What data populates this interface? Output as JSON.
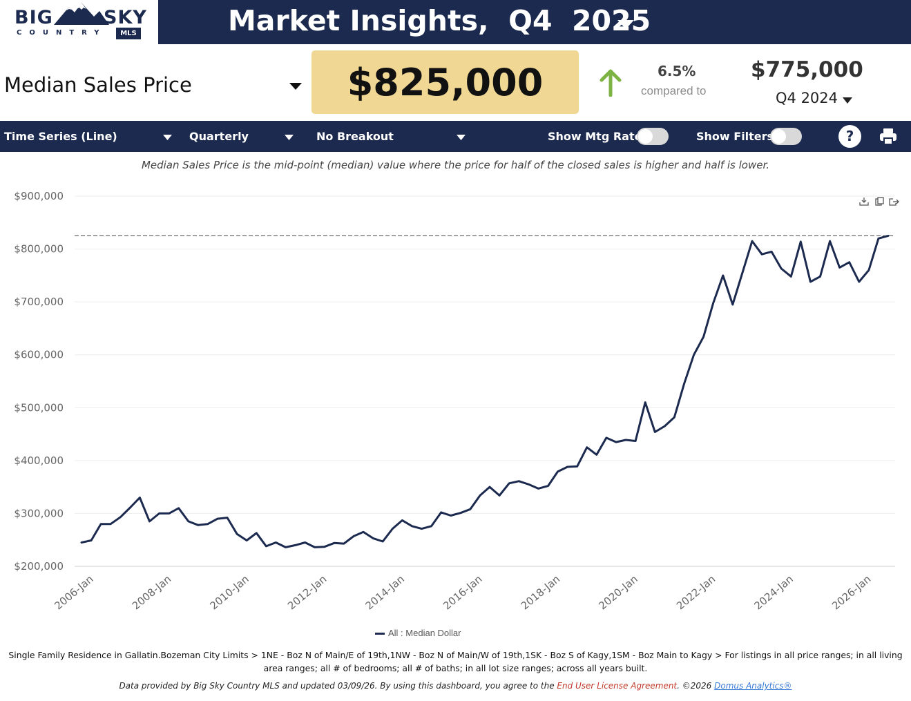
{
  "header": {
    "logo_big": "BIG",
    "logo_sky": "SKY",
    "logo_country": "COUNTRY",
    "logo_mls": "MLS",
    "title": "Market Insights,  Q4  2025"
  },
  "metric": {
    "label": "Median Sales Price",
    "value": "$825,000",
    "change_pct": "6.5%",
    "compared_to": "compared to",
    "compare_value": "$775,000",
    "compare_period": "Q4  2024",
    "change_direction": "up",
    "accent_color": "#7cb342",
    "value_box_color": "#f1d794"
  },
  "toolbar": {
    "chart_type": "Time Series (Line)",
    "frequency": "Quarterly",
    "breakout": "No Breakout",
    "show_mtg_rate": "Show Mtg Rate:",
    "show_filters": "Show Filters:",
    "help": "?",
    "bg_color": "#1b2a4e"
  },
  "description": "Median Sales Price is the mid-point (median) value where the price for half of the closed sales is higher and half is lower.",
  "legend": "All : Median Dollar",
  "filter_text": "Single Family Residence in Gallatin.Bozeman City Limits > 1NE - Boz N of Main/E of 19th,1NW - Boz N of Main/W of 19th,1SK - Boz S of Kagy,1SM - Boz Main to Kagy > For listings in all price ranges; in all living area ranges; all # of bedrooms; all # of baths; in all lot size ranges; across all years built.",
  "footer": {
    "text": "Data provided by Big Sky Country MLS and updated 03/09/26.  By using this dashboard, you agree to the ",
    "eula": "End User License Agreement",
    "copyright": ".  ©2026 ",
    "domus": "Domus Analytics®"
  },
  "chart_data": {
    "type": "line",
    "y_ticks": [
      "$200,000",
      "$300,000",
      "$400,000",
      "$500,000",
      "$600,000",
      "$700,000",
      "$800,000",
      "$900,000"
    ],
    "x_ticks": [
      "2006-Jan",
      "2008-Jan",
      "2010-Jan",
      "2012-Jan",
      "2014-Jan",
      "2016-Jan",
      "2018-Jan",
      "2020-Jan",
      "2022-Jan",
      "2024-Jan",
      "2026-Jan"
    ],
    "ylim": [
      200000,
      900000
    ],
    "x_start_year": 2005,
    "x_start_quarter": 4,
    "reference_line": 825000,
    "series": [
      {
        "name": "All : Median Dollar",
        "color": "#1b2a4e",
        "values": [
          245000,
          249000,
          280000,
          280000,
          293000,
          311000,
          330000,
          285000,
          300000,
          300000,
          310000,
          285000,
          278000,
          280000,
          290000,
          292000,
          261000,
          249000,
          263000,
          238000,
          245000,
          236000,
          240000,
          245000,
          236000,
          237000,
          244000,
          243000,
          257000,
          265000,
          253000,
          247000,
          271000,
          287000,
          276000,
          271000,
          276000,
          302000,
          296000,
          301000,
          308000,
          334000,
          350000,
          334000,
          357000,
          361000,
          355000,
          347000,
          352000,
          379000,
          388000,
          389000,
          425000,
          411000,
          443000,
          435000,
          439000,
          437000,
          510000,
          454000,
          465000,
          482000,
          545000,
          600000,
          634000,
          698000,
          750000,
          695000,
          755000,
          815000,
          790000,
          795000,
          763000,
          748000,
          814000,
          738000,
          748000,
          815000,
          765000,
          775000,
          738000,
          760000,
          820000,
          825000
        ]
      }
    ],
    "grid": true,
    "legend_position": "bottom"
  }
}
